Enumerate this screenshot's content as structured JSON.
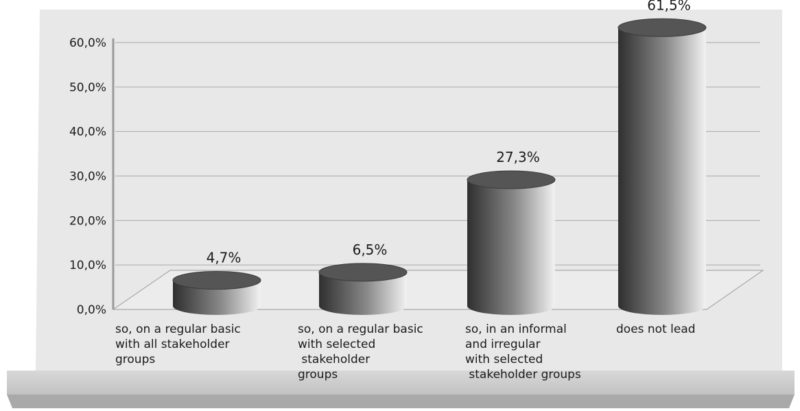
{
  "chart_data": {
    "type": "bar",
    "style": "3d-cylinder",
    "categories": [
      [
        "so, on a regular basic",
        "with all stakeholder",
        "groups"
      ],
      [
        "so, on a regular basic",
        "with selected",
        " stakeholder",
        "groups"
      ],
      [
        "so, in an informal",
        "and irregular",
        "with selected",
        " stakeholder groups"
      ],
      [
        "does not lead"
      ]
    ],
    "values": [
      4.7,
      6.5,
      27.3,
      61.5
    ],
    "data_labels": [
      "4,7%",
      "6,5%",
      "27,3%",
      "61,5%"
    ],
    "y_ticks": [
      "0,0%",
      "10,0%",
      "20,0%",
      "30,0%",
      "40,0%",
      "50,0%",
      "60,0%"
    ],
    "ylim": [
      0,
      60
    ],
    "grid": true,
    "legend": "none",
    "colors": {
      "panel": "#e8e8e8",
      "shelf": "#cfcfcf",
      "grid": "#a8a8a8",
      "bar_dark": "#2f2f2f",
      "bar_light": "#f2f2f2",
      "bar_top": "#555555"
    }
  }
}
